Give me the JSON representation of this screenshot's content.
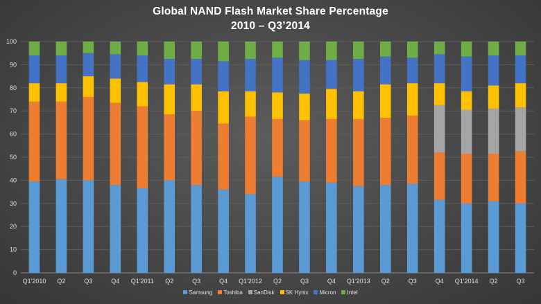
{
  "chart_data": {
    "type": "bar",
    "stacked": true,
    "title": "Global NAND Flash Market Share Percentage",
    "subtitle": "2010 – Q3’2014",
    "xlabel": "",
    "ylabel": "",
    "ylim": [
      0,
      100
    ],
    "yticks": [
      0,
      10,
      20,
      30,
      40,
      50,
      60,
      70,
      80,
      90,
      100
    ],
    "grid": true,
    "legend_position": "bottom",
    "categories": [
      "Q1'2010",
      "Q2",
      "Q3",
      "Q4",
      "Q1'2011",
      "Q2",
      "Q3",
      "Q4",
      "Q1'2012",
      "Q2",
      "Q3",
      "Q4",
      "Q1'2013",
      "Q2",
      "Q3",
      "Q4",
      "Q1'2014",
      "Q2",
      "Q3"
    ],
    "series": [
      {
        "name": "Samsung",
        "color": "#5b9bd5",
        "values": [
          39.5,
          40.5,
          40,
          38,
          36.5,
          40,
          38,
          36,
          34,
          41.5,
          39.5,
          39,
          37.5,
          38,
          38.5,
          31.5,
          30,
          31,
          30
        ]
      },
      {
        "name": "Toshiba",
        "color": "#ed7d31",
        "values": [
          34.5,
          33.5,
          36,
          35.5,
          35.5,
          28.5,
          32,
          28.5,
          33.5,
          25,
          26.5,
          27.5,
          29,
          29,
          29.5,
          20.5,
          21.5,
          20.5,
          22.5
        ]
      },
      {
        "name": "SanDisk",
        "color": "#a5a5a5",
        "values": [
          0,
          0,
          0,
          0,
          0,
          0,
          0,
          0,
          0,
          0,
          0,
          0,
          0,
          0,
          0,
          20.5,
          19,
          19.5,
          19
        ]
      },
      {
        "name": "SK Hynix",
        "color": "#ffc000",
        "values": [
          8,
          8,
          9,
          10.5,
          10.5,
          13,
          11.5,
          14,
          11,
          11.5,
          11.5,
          13,
          12,
          14.5,
          14,
          9.5,
          8,
          10,
          10.5
        ]
      },
      {
        "name": "Micron",
        "color": "#4472c4",
        "values": [
          12,
          12,
          10,
          10.5,
          11.5,
          11,
          11,
          13,
          14,
          15,
          14.5,
          12.5,
          14,
          12,
          11,
          12.5,
          15,
          13,
          12
        ]
      },
      {
        "name": "Intel",
        "color": "#70ad47",
        "values": [
          6,
          6,
          5,
          5.5,
          6,
          7.5,
          7.5,
          8.5,
          7.5,
          7,
          8,
          8,
          7.5,
          6.5,
          7,
          5.5,
          6.5,
          6,
          6
        ]
      }
    ]
  }
}
